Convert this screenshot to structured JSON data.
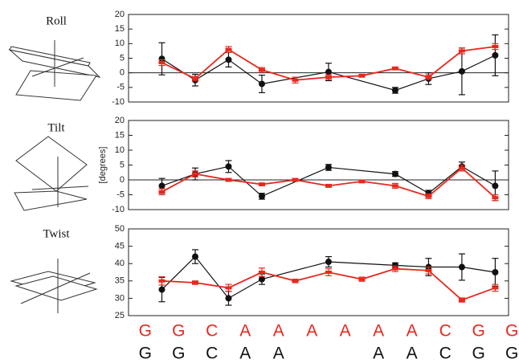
{
  "chart_data": [
    {
      "type": "line",
      "title": "Roll",
      "ylim": [
        -10,
        20
      ],
      "yticks": [
        -10,
        -5,
        0,
        5,
        10,
        15,
        20
      ],
      "xlim": [
        -0.5,
        10.9
      ],
      "zero_line": true,
      "series": [
        {
          "color": "#111111",
          "marker": "circle",
          "x": [
            0.5,
            1.5,
            2.5,
            3.5,
            5.5,
            7.5,
            8.5,
            9.5,
            10.5
          ],
          "values": [
            4.8,
            -2.5,
            4.5,
            -3.8,
            0.3,
            -6,
            -2,
            0.5,
            6
          ],
          "errors": [
            5.5,
            2,
            2.5,
            3,
            3,
            1,
            2,
            8,
            7
          ]
        },
        {
          "color": "#e8281e",
          "marker": "square",
          "x": [
            0.5,
            1.5,
            2.5,
            3.5,
            4.5,
            5.5,
            6.5,
            7.5,
            8.5,
            9.5,
            10.5
          ],
          "values": [
            3.5,
            -2,
            8,
            1,
            -2.5,
            -1.5,
            -1,
            1.5,
            -1.5,
            7.5,
            9
          ],
          "errors": [
            1,
            0.8,
            1,
            0.8,
            1,
            0.8,
            0.5,
            0.5,
            0.8,
            1,
            1
          ]
        }
      ]
    },
    {
      "type": "line",
      "title": "Tilt",
      "y_label": "[degrees]",
      "ylim": [
        -10,
        20
      ],
      "yticks": [
        -10,
        -5,
        0,
        5,
        10,
        15,
        20
      ],
      "xlim": [
        -0.5,
        10.9
      ],
      "zero_line": true,
      "series": [
        {
          "color": "#111111",
          "marker": "circle",
          "x": [
            0.5,
            1.5,
            2.5,
            3.5,
            5.5,
            7.5,
            8.5,
            9.5,
            10.5
          ],
          "values": [
            -2,
            2,
            4.5,
            -5.5,
            4.2,
            2,
            -4.5,
            4.5,
            -2
          ],
          "errors": [
            2.5,
            2,
            2,
            1,
            1,
            0.8,
            1,
            1.5,
            5
          ]
        },
        {
          "color": "#e8281e",
          "marker": "square",
          "x": [
            0.5,
            1.5,
            2.5,
            3.5,
            4.5,
            5.5,
            6.5,
            7.5,
            8.5,
            9.5,
            10.5
          ],
          "values": [
            -4,
            2,
            0,
            -1.5,
            0,
            -2,
            -0.5,
            -2,
            -5.5,
            4,
            -6
          ],
          "errors": [
            1,
            1,
            0.5,
            0.5,
            0.5,
            0.5,
            0.5,
            0.8,
            0.8,
            1,
            1
          ]
        }
      ]
    },
    {
      "type": "line",
      "title": "Twist",
      "ylim": [
        25,
        50
      ],
      "yticks": [
        25,
        30,
        35,
        40,
        45,
        50
      ],
      "xlim": [
        -0.5,
        10.9
      ],
      "zero_line": false,
      "series": [
        {
          "color": "#111111",
          "marker": "circle",
          "x": [
            0.5,
            1.5,
            2.5,
            3.5,
            5.5,
            7.5,
            8.5,
            9.5,
            10.5
          ],
          "values": [
            32.5,
            42,
            30,
            35.5,
            40.5,
            39.5,
            39,
            39,
            37.5
          ],
          "errors": [
            3.5,
            2,
            2,
            1.5,
            1.5,
            0.7,
            2.5,
            3.8,
            4
          ]
        },
        {
          "color": "#e8281e",
          "marker": "square",
          "x": [
            0.5,
            1.5,
            2.5,
            3.5,
            4.5,
            5.5,
            6.5,
            7.5,
            8.5,
            9.5,
            10.5
          ],
          "values": [
            35,
            34.5,
            33,
            37.5,
            35,
            37.5,
            35.5,
            38.5,
            38,
            29.5,
            33
          ],
          "errors": [
            1.2,
            0.5,
            1,
            1.2,
            0.5,
            1,
            0.6,
            0.8,
            1,
            0.6,
            1
          ]
        }
      ]
    }
  ],
  "sequence": {
    "top": {
      "color": "#e8281e",
      "letters": [
        "G",
        "G",
        "C",
        "A",
        "A",
        "A",
        "A",
        "A",
        "A",
        "C",
        "G",
        "G"
      ]
    },
    "bottom": {
      "color": "#111111",
      "letters": [
        "G",
        "G",
        "C",
        "A",
        "A",
        null,
        null,
        "A",
        "A",
        "C",
        "G",
        "G"
      ]
    }
  }
}
